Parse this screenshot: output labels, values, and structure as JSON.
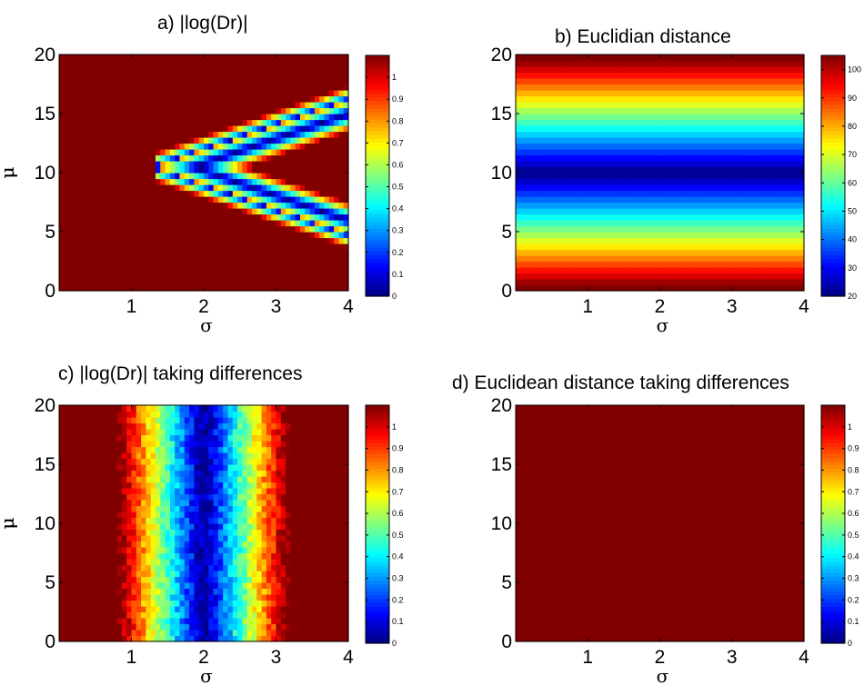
{
  "chart_data": [
    {
      "id": "a",
      "type": "heatmap",
      "title": "a) |log(Dr)|",
      "xlabel": "σ",
      "ylabel": "μ",
      "xlim": [
        0,
        4
      ],
      "ylim": [
        0,
        20
      ],
      "xticks": [
        1,
        2,
        3,
        4
      ],
      "yticks": [
        0,
        5,
        10,
        15,
        20
      ],
      "colorbar": {
        "min": 0,
        "max": 1.1,
        "ticks": [
          0,
          0.1,
          0.2,
          0.3,
          0.4,
          0.5,
          0.6,
          0.7,
          0.8,
          0.9,
          1
        ]
      },
      "pattern": "chevron",
      "apex": {
        "sigma": 1.3,
        "mu": 10.5
      }
    },
    {
      "id": "b",
      "type": "heatmap",
      "title": "b) Euclidian distance",
      "xlabel": "σ",
      "ylabel": "μ",
      "xlim": [
        0,
        4
      ],
      "ylim": [
        0,
        20
      ],
      "xticks": [
        1,
        2,
        3,
        4
      ],
      "yticks": [
        0,
        5,
        10,
        15,
        20
      ],
      "colorbar": {
        "min": 20,
        "max": 105,
        "ticks": [
          20,
          30,
          40,
          50,
          60,
          70,
          80,
          90,
          100
        ]
      },
      "pattern": "horizontal-bands",
      "minimum_at_mu": 10
    },
    {
      "id": "c",
      "type": "heatmap",
      "title": "c) |log(Dr)| taking differences",
      "xlabel": "σ",
      "ylabel": "μ",
      "xlim": [
        0,
        4
      ],
      "ylim": [
        0,
        20
      ],
      "xticks": [
        1,
        2,
        3,
        4
      ],
      "yticks": [
        0,
        5,
        10,
        15,
        20
      ],
      "colorbar": {
        "min": 0,
        "max": 1.1,
        "ticks": [
          0,
          0.1,
          0.2,
          0.3,
          0.4,
          0.5,
          0.6,
          0.7,
          0.8,
          0.9,
          1
        ]
      },
      "pattern": "vertical-bands",
      "minimum_at_sigma": 2
    },
    {
      "id": "d",
      "type": "heatmap",
      "title": "d) Euclidean distance taking differences",
      "xlabel": "σ",
      "ylabel": "μ",
      "xlim": [
        0,
        4
      ],
      "ylim": [
        0,
        20
      ],
      "xticks": [
        1,
        2,
        3,
        4
      ],
      "yticks": [
        0,
        5,
        10,
        15,
        20
      ],
      "colorbar": {
        "min": 0,
        "max": 1.1,
        "ticks": [
          0,
          0.1,
          0.2,
          0.3,
          0.4,
          0.5,
          0.6,
          0.7,
          0.8,
          0.9,
          1
        ]
      },
      "pattern": "uniform-max"
    }
  ]
}
